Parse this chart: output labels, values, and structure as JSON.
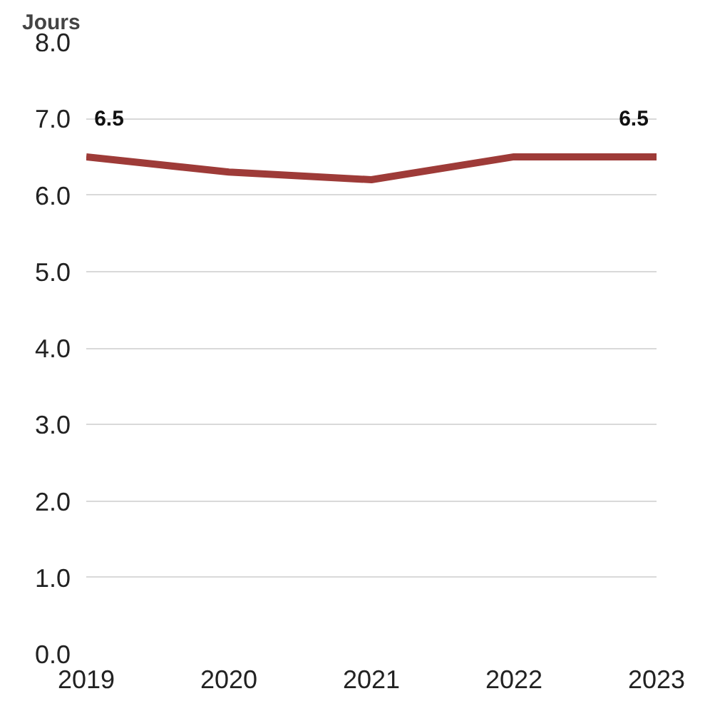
{
  "chart_data": {
    "type": "line",
    "ylabel": "Jours",
    "categories": [
      "2019",
      "2020",
      "2021",
      "2022",
      "2023"
    ],
    "series": [
      {
        "color": "#9e3b38",
        "values": [
          6.5,
          6.3,
          6.2,
          6.5,
          6.5
        ],
        "value_labels": [
          "6.5",
          null,
          null,
          null,
          "6.5"
        ]
      }
    ],
    "ylim": [
      0,
      8
    ],
    "yticks": [
      {
        "value": 0,
        "label": "0.0"
      },
      {
        "value": 1,
        "label": "1.0"
      },
      {
        "value": 2,
        "label": "2.0"
      },
      {
        "value": 3,
        "label": "3.0"
      },
      {
        "value": 4,
        "label": "4.0"
      },
      {
        "value": 5,
        "label": "5.0"
      },
      {
        "value": 6,
        "label": "6.0"
      },
      {
        "value": 7,
        "label": "7.0"
      },
      {
        "value": 8,
        "label": "8.0"
      }
    ],
    "grid": "y",
    "marker": "none",
    "line_style": "solid"
  }
}
